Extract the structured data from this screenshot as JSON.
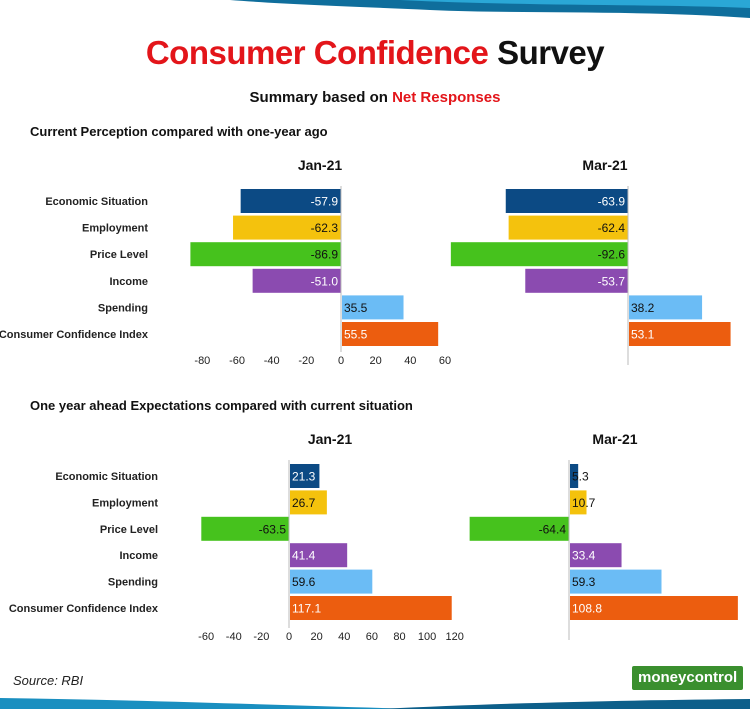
{
  "header": {
    "title_red": "Consumer Confidence",
    "title_black": "Survey",
    "subtitle_black": "Summary based on",
    "subtitle_red": "Net Responses"
  },
  "sections": [
    {
      "title": "Current Perception compared with one-year ago"
    },
    {
      "title": "One year ahead Expectations compared with current situation"
    }
  ],
  "footer": {
    "source": "Source: RBI",
    "logo": "moneycontrol"
  },
  "colors": {
    "Economic Situation": "#0c4a84",
    "Employment": "#f4c20d",
    "Price Level": "#46c21d",
    "Income": "#8b4bb0",
    "Spending": "#6bbcf5",
    "Consumer Confidence Index": "#ec5d0f"
  },
  "chart_data": [
    {
      "type": "bar",
      "orientation": "horizontal",
      "section": "Current Perception compared with one-year ago",
      "title": "Jan-21",
      "categories": [
        "Economic Situation",
        "Employment",
        "Price Level",
        "Income",
        "Spending",
        "Consumer Confidence Index"
      ],
      "values": [
        -57.9,
        -62.3,
        -86.9,
        -51.0,
        35.5,
        55.5
      ],
      "value_labels": [
        "-57.9",
        "-62.3",
        "-86.9",
        "-51.0",
        "35.5",
        "55.5"
      ],
      "xticks": [
        -80,
        -60,
        -40,
        -20,
        0,
        20,
        40,
        60
      ],
      "xlim": [
        -86.9,
        70
      ]
    },
    {
      "type": "bar",
      "orientation": "horizontal",
      "section": "Current Perception compared with one-year ago",
      "title": "Mar-21",
      "categories": [
        "Economic Situation",
        "Employment",
        "Price Level",
        "Income",
        "Spending",
        "Consumer Confidence Index"
      ],
      "values": [
        -63.9,
        -62.4,
        -92.6,
        -53.7,
        38.2,
        53.1
      ],
      "value_labels": [
        "-63.9",
        "-62.4",
        "-92.6",
        "-53.7",
        "38.2",
        "53.1"
      ],
      "xticks": [],
      "xlim": [
        -92.6,
        55
      ]
    },
    {
      "type": "bar",
      "orientation": "horizontal",
      "section": "One year ahead Expectations compared with current situation",
      "title": "Jan-21",
      "categories": [
        "Economic Situation",
        "Employment",
        "Price Level",
        "Income",
        "Spending",
        "Consumer Confidence Index"
      ],
      "values": [
        21.3,
        26.7,
        -63.5,
        41.4,
        59.6,
        117.1
      ],
      "value_labels": [
        "21.3",
        "26.7",
        "-63.5",
        "41.4",
        "59.6",
        "117.1"
      ],
      "xticks": [
        -60,
        -40,
        -20,
        0,
        20,
        40,
        60,
        80,
        100,
        120
      ],
      "xlim": [
        -63.5,
        130
      ]
    },
    {
      "type": "bar",
      "orientation": "horizontal",
      "section": "One year ahead Expectations compared with current situation",
      "title": "Mar-21",
      "categories": [
        "Economic Situation",
        "Employment",
        "Price Level",
        "Income",
        "Spending",
        "Consumer Confidence Index"
      ],
      "values": [
        5.3,
        10.7,
        -64.4,
        33.4,
        59.3,
        108.8
      ],
      "value_labels": [
        "5.3",
        "10.7",
        "-64.4",
        "33.4",
        "59.3",
        "108.8"
      ],
      "xticks": [],
      "xlim": [
        -64.4,
        110
      ]
    }
  ]
}
